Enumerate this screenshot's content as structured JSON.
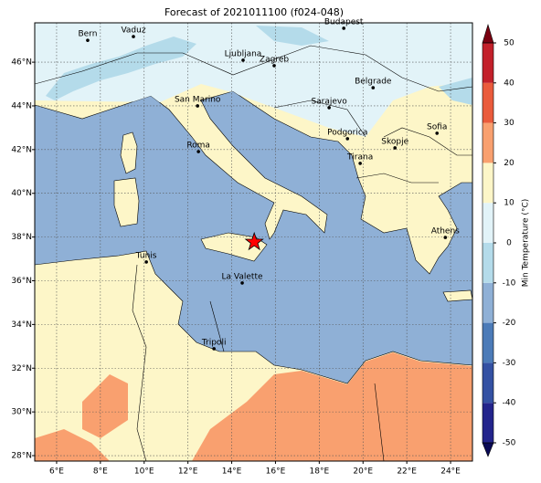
{
  "title": "Forecast of 2021011100 (f024-048)",
  "map": {
    "lonlim": [
      5,
      25
    ],
    "latlim": [
      27.75,
      47.8
    ],
    "grid": true,
    "lonticks": [
      {
        "value": 6,
        "label": "6°E"
      },
      {
        "value": 8,
        "label": "8°E"
      },
      {
        "value": 10,
        "label": "10°E"
      },
      {
        "value": 12,
        "label": "12°E"
      },
      {
        "value": 14,
        "label": "14°E"
      },
      {
        "value": 16,
        "label": "16°E"
      },
      {
        "value": 18,
        "label": "18°E"
      },
      {
        "value": 20,
        "label": "20°E"
      },
      {
        "value": 22,
        "label": "22°E"
      },
      {
        "value": 24,
        "label": "24°E"
      }
    ],
    "latticks": [
      {
        "value": 28,
        "label": "28°N"
      },
      {
        "value": 30,
        "label": "30°N"
      },
      {
        "value": 32,
        "label": "32°N"
      },
      {
        "value": 34,
        "label": "34°N"
      },
      {
        "value": 36,
        "label": "36°N"
      },
      {
        "value": 38,
        "label": "38°N"
      },
      {
        "value": 40,
        "label": "40°N"
      },
      {
        "value": 42,
        "label": "42°N"
      },
      {
        "value": 44,
        "label": "44°N"
      },
      {
        "value": 46,
        "label": "46°N"
      }
    ]
  },
  "cities": [
    {
      "name": "Bern",
      "lon": 7.42,
      "lat": 47.0
    },
    {
      "name": "Vaduz",
      "lon": 9.51,
      "lat": 47.17
    },
    {
      "name": "Budapest",
      "lon": 19.12,
      "lat": 47.55
    },
    {
      "name": "Ljubljana",
      "lon": 14.52,
      "lat": 46.09
    },
    {
      "name": "Zagreb",
      "lon": 15.94,
      "lat": 45.84
    },
    {
      "name": "Belgrade",
      "lon": 20.46,
      "lat": 44.83
    },
    {
      "name": "San Marino",
      "lon": 12.44,
      "lat": 44.0
    },
    {
      "name": "Sarajevo",
      "lon": 18.45,
      "lat": 43.92
    },
    {
      "name": "Sofia",
      "lon": 23.38,
      "lat": 42.75
    },
    {
      "name": "Podgorica",
      "lon": 19.29,
      "lat": 42.5
    },
    {
      "name": "Skopje",
      "lon": 21.46,
      "lat": 42.08
    },
    {
      "name": "Roma",
      "lon": 12.48,
      "lat": 41.91
    },
    {
      "name": "Tirana",
      "lon": 19.87,
      "lat": 41.37
    },
    {
      "name": "Athens",
      "lon": 23.76,
      "lat": 37.98
    },
    {
      "name": "Tunis",
      "lon": 10.1,
      "lat": 36.86
    },
    {
      "name": "La Valette",
      "lon": 14.48,
      "lat": 35.9
    },
    {
      "name": "Tripoli",
      "lon": 13.19,
      "lat": 32.89
    }
  ],
  "star": {
    "lon": 15.03,
    "lat": 37.77,
    "color": "#ff0000"
  },
  "colorbar": {
    "label": "Min Temperature (°C)",
    "lim": [
      -50,
      50
    ],
    "ticks": [
      -50,
      -40,
      -30,
      -20,
      -10,
      0,
      10,
      20,
      30,
      40,
      50
    ],
    "colors": [
      "#23248c",
      "#3451a3",
      "#4c7bb8",
      "#8fb0d6",
      "#b4dbea",
      "#e2f3f8",
      "#fdf6c8",
      "#f9a06f",
      "#ea5b3c",
      "#c3202a"
    ],
    "under": "#0a0a55",
    "over": "#7a0010"
  }
}
